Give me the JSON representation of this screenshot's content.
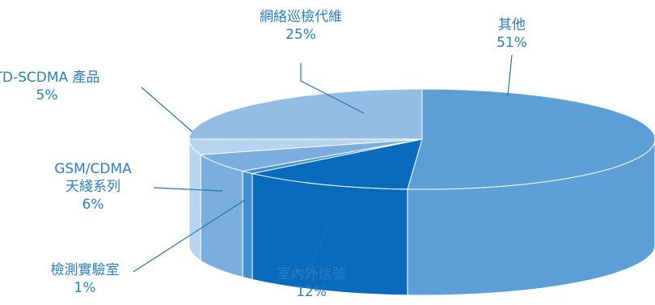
{
  "chart_data": {
    "type": "pie",
    "style": "3d-exploded-none",
    "unit": "%",
    "slices": [
      {
        "label": "其他",
        "label_lines": [
          "其他"
        ],
        "value": 51,
        "value_text": "51%",
        "top_color": "#5b9fd6",
        "side_color": "#5b9fd6"
      },
      {
        "label": "室內外信號",
        "label_lines": [
          "室內外信號"
        ],
        "value": 12,
        "value_text": "12%",
        "top_color": "#0a6bbd",
        "side_color": "#0a6bbd"
      },
      {
        "label": "檢測實驗室",
        "label_lines": [
          "檢測實驗室"
        ],
        "value": 1,
        "value_text": "1%",
        "top_color": "#3f8fd2",
        "side_color": "#3f8fd2"
      },
      {
        "label": "GSM/CDMA 天綫系列",
        "label_lines": [
          "GSM/CDMA",
          "天綫系列"
        ],
        "value": 6,
        "value_text": "6%",
        "top_color": "#7aaede",
        "side_color": "#7aaede"
      },
      {
        "label": "TD-SCDMA 產品",
        "label_lines": [
          "TD-SCDMA 產品"
        ],
        "value": 5,
        "value_text": "5%",
        "top_color": "#b6d3ef",
        "side_color": "#b6d3ef"
      },
      {
        "label": "網絡巡檢代維",
        "label_lines": [
          "網絡巡檢代維"
        ],
        "value": 25,
        "value_text": "25%",
        "top_color": "#94bde6",
        "side_color": "#a9caec"
      }
    ]
  }
}
